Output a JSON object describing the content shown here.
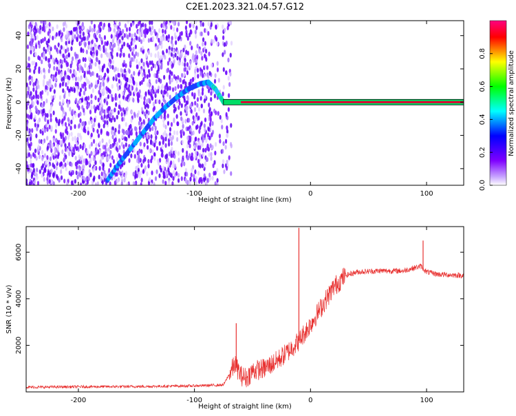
{
  "title": "C2E1.2023.321.04.57.G12",
  "chart_data": [
    {
      "type": "heatmap",
      "title": "C2E1.2023.321.04.57.G12",
      "xlabel": "Height of straight line (km)",
      "ylabel": "Frequency (Hz)",
      "xlim": [
        -245,
        132
      ],
      "ylim": [
        -50,
        49
      ],
      "xticks": [
        -200,
        -100,
        0,
        100
      ],
      "yticks": [
        -40,
        -20,
        0,
        20,
        40
      ],
      "doppler_trace": {
        "x": [
          -175,
          -165,
          -155,
          -145,
          -135,
          -125,
          -115,
          -105,
          -95,
          -88,
          -82,
          -75,
          -65,
          -55,
          -45,
          -30,
          -15,
          0
        ],
        "y": [
          -47,
          -37,
          -28,
          -19,
          -10,
          -3,
          3,
          8,
          11,
          12,
          8,
          0,
          0,
          0,
          0,
          0,
          0,
          0
        ]
      },
      "carrier_line": {
        "x_range": [
          -75,
          132
        ],
        "y": 0
      },
      "colorbar": {
        "label": "Normalized spectral amplitude",
        "ticks": [
          0.0,
          0.2,
          0.4,
          0.6,
          0.8
        ],
        "range": [
          0,
          1
        ],
        "colormap": "rainbow (white-violet-blue-cyan-green-yellow-red)"
      }
    },
    {
      "type": "line",
      "xlabel": "Height of straight line (km)",
      "ylabel": "SNR (10 * v/v)",
      "xlim": [
        -245,
        132
      ],
      "ylim": [
        0,
        7100
      ],
      "xticks": [
        -200,
        -100,
        0,
        100
      ],
      "yticks": [
        2000,
        4000,
        6000
      ],
      "color": "#e8302f",
      "series": [
        {
          "x": [
            -245,
            -200,
            -150,
            -100,
            -75,
            -65,
            -60,
            -55,
            -50,
            -40,
            -30,
            -20,
            -10,
            0,
            10,
            20,
            30,
            40,
            60,
            80,
            95,
            100,
            110,
            132
          ],
          "y": [
            200,
            220,
            230,
            260,
            300,
            1200,
            700,
            600,
            900,
            1000,
            1300,
            1700,
            2200,
            2900,
            3700,
            4500,
            5000,
            5150,
            5200,
            5200,
            5400,
            5150,
            5050,
            5000
          ]
        }
      ],
      "spikes": [
        {
          "x": -64,
          "y": 2950
        },
        {
          "x": -10,
          "y": 7050
        },
        {
          "x": 97,
          "y": 6500
        }
      ]
    }
  ]
}
